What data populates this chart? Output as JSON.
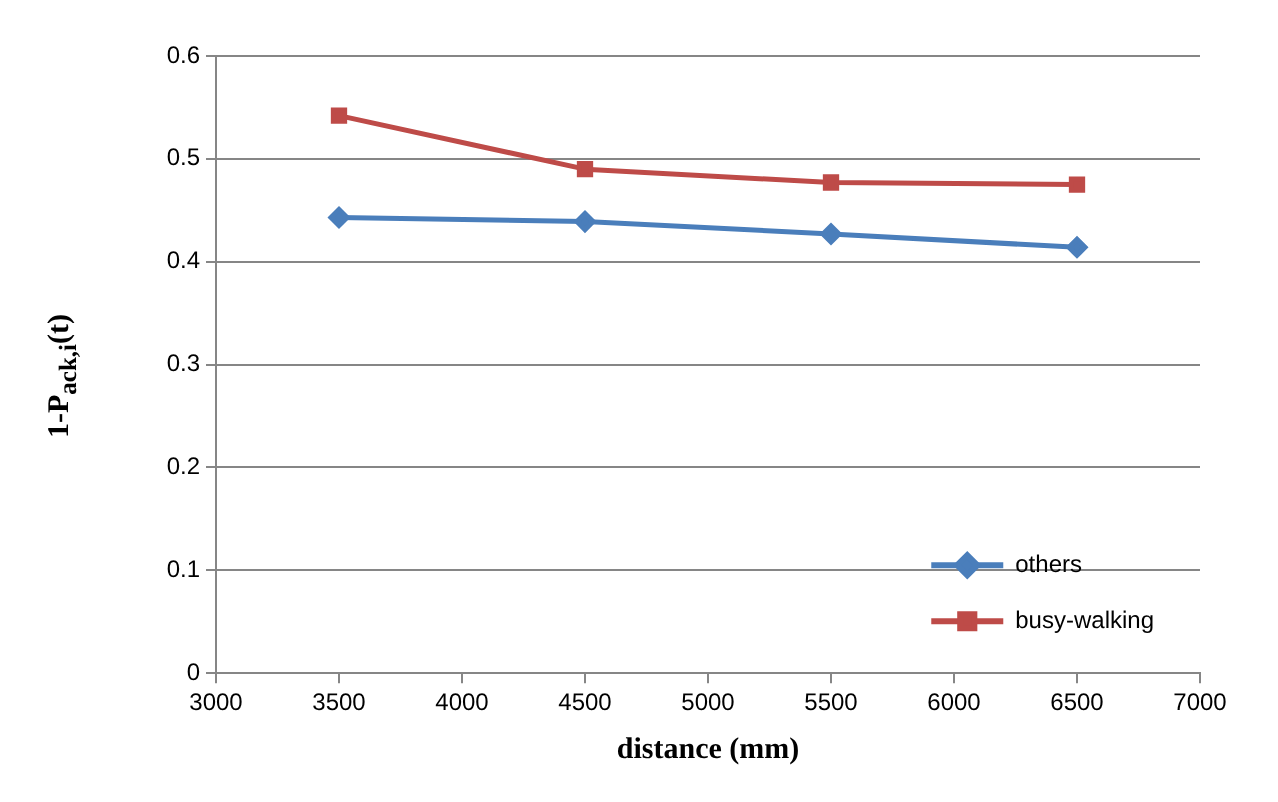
{
  "chart_data": {
    "type": "line",
    "xlabel": "distance (mm)",
    "ylabel": "1-P$_{ack,i}$(t)",
    "x": [
      3500,
      4500,
      5500,
      6500
    ],
    "series": [
      {
        "name": "others",
        "color": "#4a7ebb",
        "marker": "diamond",
        "values": [
          0.443,
          0.439,
          0.427,
          0.414
        ]
      },
      {
        "name": "busy-walking",
        "color": "#be4b48",
        "marker": "square",
        "values": [
          0.542,
          0.49,
          0.477,
          0.475
        ]
      }
    ],
    "xlim": [
      3000,
      7000
    ],
    "xticks": [
      3000,
      3500,
      4000,
      4500,
      5000,
      5500,
      6000,
      6500,
      7000
    ],
    "ylim": [
      0,
      0.6
    ],
    "yticks": [
      0,
      0.1,
      0.2,
      0.3,
      0.4,
      0.5,
      0.6
    ],
    "grid": "y",
    "legend": "bottom right"
  }
}
